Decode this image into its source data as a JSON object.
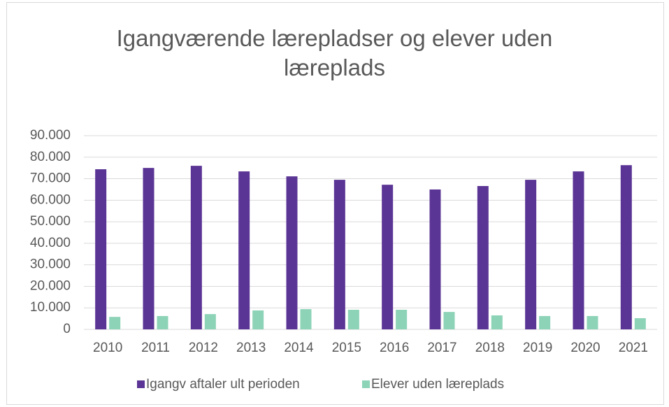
{
  "chart_data": {
    "type": "bar",
    "title": "Igangværende lærepladser og elever uden læreplads",
    "categories": [
      "2010",
      "2011",
      "2012",
      "2013",
      "2014",
      "2015",
      "2016",
      "2017",
      "2018",
      "2019",
      "2020",
      "2021"
    ],
    "series": [
      {
        "name": "Igangv aftaler ult perioden",
        "color": "#5b3595",
        "values": [
          74400,
          75000,
          76000,
          73400,
          71100,
          69500,
          67200,
          65000,
          66600,
          69500,
          73400,
          76300
        ]
      },
      {
        "name": "Elever uden læreplads",
        "color": "#8dd3b7",
        "values": [
          5800,
          6200,
          7100,
          8800,
          9400,
          9100,
          9100,
          8100,
          6500,
          6200,
          6200,
          5200
        ]
      }
    ],
    "ylim": [
      0,
      90000
    ],
    "yticks": [
      0,
      {
        "value": 10000,
        "label": "10.000"
      },
      {
        "value": 20000,
        "label": "20.000"
      },
      {
        "value": 30000,
        "label": "30.000"
      },
      {
        "value": 40000,
        "label": "40.000"
      },
      {
        "value": 50000,
        "label": "50.000"
      },
      {
        "value": 60000,
        "label": "60.000"
      },
      {
        "value": 70000,
        "label": "70.000"
      },
      {
        "value": 80000,
        "label": "80.000"
      },
      {
        "value": 90000,
        "label": "90.000"
      }
    ],
    "grid": true,
    "legend": "bottom"
  }
}
